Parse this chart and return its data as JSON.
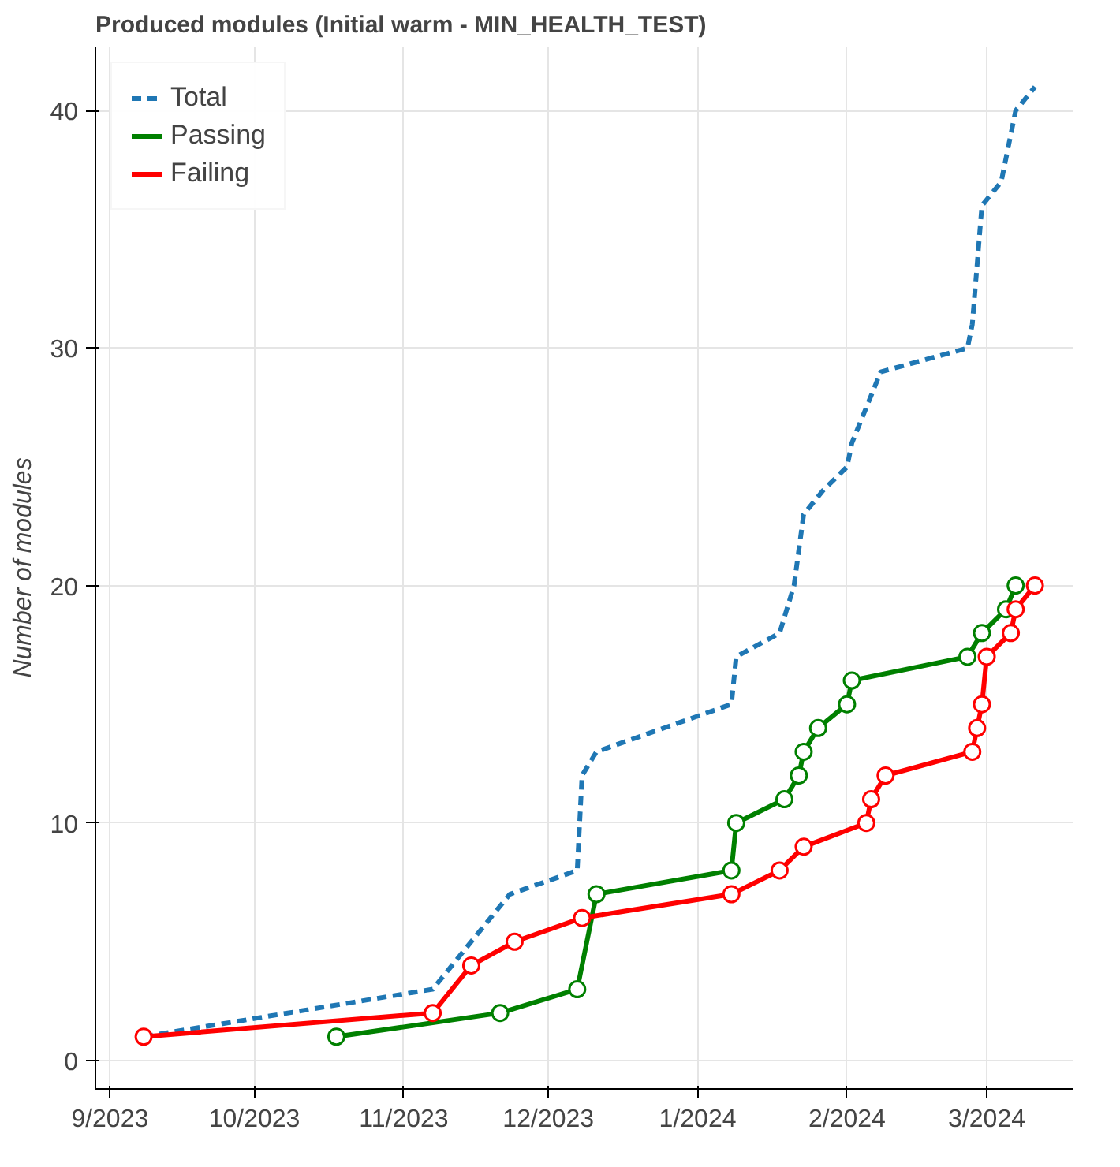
{
  "chart_data": {
    "type": "line",
    "title": "Produced modules (Initial warm - MIN_HEALTH_TEST)",
    "ylabel": "Number of modules",
    "xlim": [
      "2023-08-29",
      "2024-03-19"
    ],
    "ylim": [
      -1.2,
      42.7
    ],
    "xticks": [
      {
        "value": "2023-09-01",
        "label": "9/2023"
      },
      {
        "value": "2023-10-01",
        "label": "10/2023"
      },
      {
        "value": "2023-11-01",
        "label": "11/2023"
      },
      {
        "value": "2023-12-01",
        "label": "12/2023"
      },
      {
        "value": "2024-01-01",
        "label": "1/2024"
      },
      {
        "value": "2024-02-01",
        "label": "2/2024"
      },
      {
        "value": "2024-03-01",
        "label": "3/2024"
      }
    ],
    "yticks": [
      0,
      10,
      20,
      30,
      40
    ],
    "grid": true,
    "legend": "top left",
    "series": [
      {
        "name": "Total",
        "color": "#1f77b4",
        "line_style": "dashed",
        "marker": "none",
        "x": [
          "2023-09-08",
          "2023-11-07",
          "2023-11-23",
          "2023-12-07",
          "2023-12-08",
          "2023-12-11",
          "2024-01-08",
          "2024-01-09",
          "2024-01-18",
          "2024-01-21",
          "2024-01-23",
          "2024-01-27",
          "2024-02-01",
          "2024-02-02",
          "2024-02-08",
          "2024-02-26",
          "2024-02-27",
          "2024-02-29",
          "2024-03-04",
          "2024-03-07",
          "2024-03-11"
        ],
        "values": [
          1,
          3,
          7,
          8,
          12,
          13,
          15,
          17,
          18,
          20,
          23,
          24,
          25,
          26,
          29,
          30,
          31,
          36,
          37,
          40,
          41
        ]
      },
      {
        "name": "Passing",
        "color": "#008000",
        "line_style": "solid",
        "marker": "circle",
        "x": [
          "2023-10-18",
          "2023-11-21",
          "2023-12-07",
          "2023-12-11",
          "2024-01-08",
          "2024-01-09",
          "2024-01-19",
          "2024-01-22",
          "2024-01-23",
          "2024-01-26",
          "2024-02-01",
          "2024-02-02",
          "2024-02-26",
          "2024-02-29",
          "2024-03-05",
          "2024-03-07"
        ],
        "values": [
          1,
          2,
          3,
          7,
          8,
          10,
          11,
          12,
          13,
          14,
          15,
          16,
          17,
          18,
          19,
          20
        ]
      },
      {
        "name": "Failing",
        "color": "#ff0000",
        "line_style": "solid",
        "marker": "circle",
        "x": [
          "2023-09-08",
          "2023-11-07",
          "2023-11-15",
          "2023-11-24",
          "2023-12-08",
          "2024-01-08",
          "2024-01-18",
          "2024-01-23",
          "2024-02-05",
          "2024-02-06",
          "2024-02-09",
          "2024-02-27",
          "2024-02-28",
          "2024-02-29",
          "2024-03-01",
          "2024-03-06",
          "2024-03-07",
          "2024-03-11"
        ],
        "values": [
          1,
          2,
          4,
          5,
          6,
          7,
          8,
          9,
          10,
          11,
          12,
          13,
          14,
          15,
          17,
          18,
          19,
          20
        ]
      }
    ]
  }
}
